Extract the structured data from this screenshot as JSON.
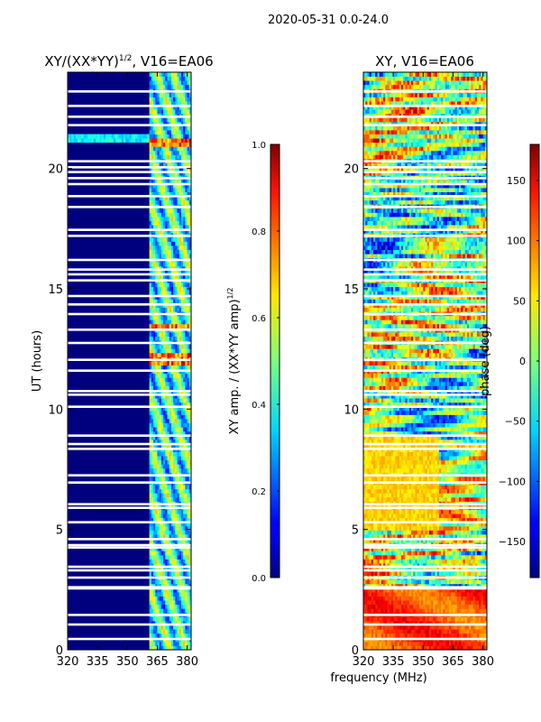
{
  "suptitle": "2020-05-31 0.0-24.0",
  "xlabel": "frequency (MHz)",
  "chart_data": [
    {
      "type": "heatmap",
      "title": "XY/(XX*YY)",
      "title_exponent": "1/2",
      "title_suffix": ", V16=EA06",
      "xlabel": "",
      "ylabel": "UT (hours)",
      "x_ticks": [
        "320",
        "335",
        "350",
        "365",
        "380"
      ],
      "x_tick_values": [
        320,
        335,
        350,
        365,
        380
      ],
      "y_ticks": [
        "0",
        "5",
        "10",
        "15",
        "20"
      ],
      "y_tick_values": [
        0,
        5,
        10,
        15,
        20
      ],
      "xlim": [
        320,
        382
      ],
      "ylim": [
        0,
        24
      ],
      "colorbar": {
        "label": "XY amp. / (XX*YY amp)",
        "label_exponent": "1/2",
        "ticks": [
          "0.0",
          "0.2",
          "0.4",
          "0.6",
          "0.8",
          "1.0"
        ],
        "tick_values": [
          0.0,
          0.2,
          0.4,
          0.6,
          0.8,
          1.0
        ],
        "range": [
          0.0,
          1.0
        ],
        "colormap": "jet"
      }
    },
    {
      "type": "heatmap",
      "title": "XY, V16=EA06",
      "xlabel": "frequency (MHz)",
      "ylabel": "",
      "x_ticks": [
        "320",
        "335",
        "350",
        "365",
        "380"
      ],
      "x_tick_values": [
        320,
        335,
        350,
        365,
        380
      ],
      "y_ticks": [
        "0",
        "5",
        "10",
        "15",
        "20"
      ],
      "y_tick_values": [
        0,
        5,
        10,
        15,
        20
      ],
      "xlim": [
        320,
        382
      ],
      "ylim": [
        0,
        24
      ],
      "colorbar": {
        "label": "phase (deg)",
        "ticks": [
          "−150",
          "−100",
          "−50",
          "0",
          "50",
          "100",
          "150"
        ],
        "tick_values": [
          -150,
          -100,
          -50,
          0,
          50,
          100,
          150
        ],
        "range": [
          -180,
          180
        ],
        "colormap": "jet"
      }
    }
  ],
  "flagged_hours": [
    0.45,
    1.05,
    1.45,
    2.55,
    2.6,
    3.0,
    3.3,
    3.45,
    4.25,
    4.35,
    4.6,
    5.3,
    5.9,
    6.05,
    6.95,
    7.25,
    8.35,
    8.55,
    8.9,
    10.1,
    10.6,
    10.75,
    11.6,
    12.05,
    12.75,
    13.3,
    13.95,
    14.35,
    14.7,
    15.35,
    15.6,
    15.8,
    16.2,
    17.2,
    17.45,
    18.4,
    18.85,
    19.35,
    19.6,
    19.85,
    20.05,
    20.3,
    21.8,
    22.15,
    22.6,
    23.2
  ]
}
